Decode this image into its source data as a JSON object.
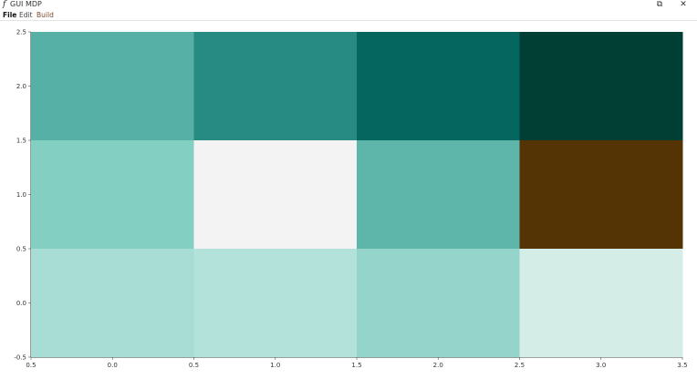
{
  "window": {
    "title": "GUI MDP",
    "app_icon": "f",
    "restore_icon": "⧉",
    "close_icon": "✕"
  },
  "menu": {
    "file": "File",
    "edit": "Edit",
    "build": "Build"
  },
  "chart_data": {
    "type": "heatmap",
    "x_tick_labels": [
      "0.5",
      "0.0",
      "0.5",
      "1.0",
      "1.5",
      "2.0",
      "2.5",
      "3.0",
      "3.5"
    ],
    "y_tick_labels": [
      "2.5",
      "2.0",
      "1.5",
      "1.0",
      "0.5",
      "0.0",
      "-0.5"
    ],
    "cols": 4,
    "rows": 3,
    "cells": [
      [
        "#56b0a5",
        "#278b84",
        "#05665f",
        "#013f35"
      ],
      [
        "#83cfc1",
        "#f3f3f3",
        "#5eb6ab",
        "#543304"
      ],
      [
        "#a8ddd5",
        "#b3e2db",
        "#95d4ca",
        "#d5ede7"
      ]
    ]
  }
}
